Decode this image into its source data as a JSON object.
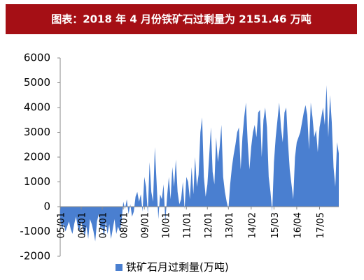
{
  "chart_data": {
    "type": "area",
    "title": "图表：2018 年 4 月份铁矿石过剩量为 2151.46 万吨",
    "categories": [
      "05/01",
      null,
      null,
      null,
      null,
      null,
      null,
      null,
      null,
      null,
      null,
      null,
      "06/01",
      null,
      null,
      null,
      null,
      null,
      null,
      null,
      null,
      null,
      null,
      null,
      "07/01",
      null,
      null,
      null,
      null,
      null,
      null,
      null,
      null,
      null,
      null,
      null,
      "08/01",
      null,
      null,
      null,
      null,
      null,
      null,
      null,
      null,
      null,
      null,
      null,
      "09/01",
      null,
      null,
      null,
      null,
      null,
      null,
      null,
      null,
      null,
      null,
      null,
      "10/01",
      null,
      null,
      null,
      null,
      null,
      null,
      null,
      null,
      null,
      null,
      null,
      "11/01",
      null,
      null,
      null,
      null,
      null,
      null,
      null,
      null,
      null,
      null,
      null,
      "12/01",
      null,
      null,
      null,
      null,
      null,
      null,
      null,
      null,
      null,
      null,
      null,
      "13/01",
      null,
      null,
      null,
      null,
      null,
      null,
      null,
      null,
      null,
      null,
      null,
      null,
      "14/02",
      null,
      null,
      null,
      null,
      null,
      null,
      null,
      null,
      null,
      null,
      null,
      null,
      "15/03",
      null,
      null,
      null,
      null,
      null,
      null,
      null,
      null,
      null,
      null,
      null,
      null,
      "16/04",
      null,
      null,
      null,
      null,
      null,
      null,
      null,
      null,
      null,
      null,
      null,
      null,
      "17/05",
      null,
      null,
      null,
      null,
      null,
      null,
      null,
      null,
      null,
      null,
      null
    ],
    "series": [
      {
        "name": "铁矿石月过剩量(万吨)",
        "color": "#4a7fd0",
        "values": [
          -500,
          -900,
          -700,
          -1000,
          -800,
          -600,
          -900,
          -1100,
          -700,
          -400,
          -800,
          -1000,
          -600,
          -900,
          -1200,
          -800,
          -1300,
          -500,
          -700,
          -1000,
          -1400,
          -600,
          -300,
          -900,
          -800,
          -1200,
          -600,
          -1100,
          -700,
          -1300,
          -900,
          -500,
          -1100,
          -800,
          -1000,
          -600,
          200,
          -100,
          300,
          -300,
          100,
          -400,
          -200,
          400,
          600,
          200,
          500,
          -200,
          1200,
          800,
          -300,
          1800,
          600,
          200,
          2400,
          1000,
          -500,
          500,
          300,
          900,
          -600,
          400,
          1200,
          300,
          1600,
          800,
          1900,
          600,
          100,
          300,
          1000,
          -100,
          1200,
          1000,
          300,
          1600,
          500,
          2000,
          800,
          1300,
          3000,
          3600,
          1200,
          400,
          900,
          2000,
          3200,
          1400,
          900,
          2800,
          1800,
          2400,
          3300,
          1200,
          600,
          200,
          -100,
          900,
          1600,
          2100,
          2500,
          3000,
          3200,
          1500,
          2800,
          3600,
          4200,
          2600,
          1500,
          2400,
          3000,
          3300,
          2800,
          3800,
          3900,
          2000,
          3500,
          4000,
          3200,
          1200,
          600,
          -200,
          1800,
          2800,
          3500,
          4200,
          3200,
          2600,
          3800,
          4000,
          2600,
          1500,
          900,
          300,
          2000,
          2600,
          2800,
          3000,
          3400,
          3800,
          4100,
          3700,
          2300,
          4200,
          3600,
          2800,
          3100,
          2200,
          3200,
          3600,
          4000,
          3300,
          4900,
          2800,
          4500,
          3400,
          1600,
          800,
          2600,
          2151.46
        ]
      }
    ],
    "ylim": [
      -2000,
      6000
    ],
    "yticks": [
      -2000,
      -1000,
      0,
      1000,
      2000,
      3000,
      4000,
      5000,
      6000
    ]
  }
}
